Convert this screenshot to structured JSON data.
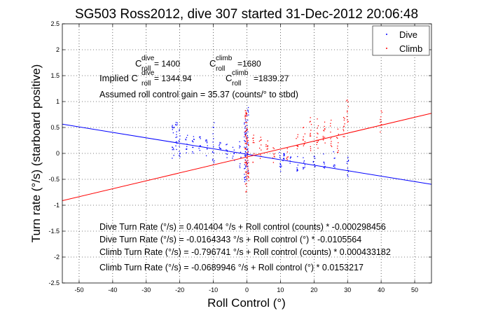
{
  "chart_data": {
    "type": "scatter",
    "title": "SG503 Ross2012, dive 307 started 31-Dec-2012 20:06:48",
    "xlabel": "Roll Control (°)",
    "ylabel": "Turn rate (°/s) (starboard positive)",
    "xlim": [
      -55,
      55
    ],
    "ylim": [
      -2.5,
      2.5
    ],
    "xticks": [
      -50,
      -40,
      -30,
      -20,
      -10,
      0,
      10,
      20,
      30,
      40,
      50
    ],
    "yticks": [
      -2.5,
      -2,
      -1.5,
      -1,
      -0.5,
      0,
      0.5,
      1,
      1.5,
      2,
      2.5
    ],
    "grid": true,
    "legend": {
      "position": "top-right",
      "entries": [
        {
          "name": "Dive",
          "color": "#0000ff"
        },
        {
          "name": "Climb",
          "color": "#ff0000"
        }
      ]
    },
    "annotations": {
      "croll_line": {
        "c1": "C",
        "sup1": "dive",
        "sub1": "roll",
        "v1": " = 1400",
        "c2": "C",
        "sup2": "climb",
        "sub2": "roll",
        "v2": "=1680"
      },
      "implied_line": {
        "prefix": "Implied C",
        "sup1": "dive",
        "sub1": "roll",
        "v1": " = 1344.94",
        "c2": "C",
        "sup2": "climb",
        "sub2": "roll",
        "v2": "=1839.27"
      },
      "gain": "Assumed roll control gain = 35.37 (counts/° to stbd)",
      "fits": [
        "Dive Turn Rate (°/s) = 0.401404 °/s + Roll control (counts) * -0.000298456",
        "Dive Turn Rate (°/s) = -0.0164343 °/s + Roll control (°) * -0.0105564",
        "Climb Turn Rate (°/s) = -0.796741 °/s + Roll control (counts) * 0.000433182",
        "Climb Turn Rate (°/s) = -0.0689946 °/s + Roll control (°) * 0.0153217"
      ]
    },
    "series": [
      {
        "name": "Dive",
        "color": "#0000ff",
        "fit": {
          "intercept": -0.0164343,
          "slope": -0.0105564
        },
        "clusters": [
          {
            "x": -22,
            "y_min": -0.1,
            "y_max": 0.55,
            "n": 14
          },
          {
            "x": -21,
            "y_min": 0.0,
            "y_max": 0.6,
            "n": 14
          },
          {
            "x": -20,
            "y_min": -0.1,
            "y_max": 0.5,
            "n": 12
          },
          {
            "x": -18,
            "y_min": -0.05,
            "y_max": 0.4,
            "n": 10
          },
          {
            "x": -16,
            "y_min": 0.0,
            "y_max": 0.35,
            "n": 10
          },
          {
            "x": -14,
            "y_min": 0.05,
            "y_max": 0.35,
            "n": 9
          },
          {
            "x": -12,
            "y_min": -0.1,
            "y_max": 0.3,
            "n": 9
          },
          {
            "x": -10,
            "y_min": -0.2,
            "y_max": 0.6,
            "n": 14
          },
          {
            "x": -8,
            "y_min": -0.1,
            "y_max": 0.25,
            "n": 8
          },
          {
            "x": -6,
            "y_min": -0.1,
            "y_max": 0.2,
            "n": 8
          },
          {
            "x": -4,
            "y_min": -0.15,
            "y_max": 0.15,
            "n": 8
          },
          {
            "x": -2,
            "y_min": -0.3,
            "y_max": 0.3,
            "n": 10
          },
          {
            "x": -0.5,
            "y_min": -0.55,
            "y_max": 0.7,
            "n": 40
          },
          {
            "x": 0.2,
            "y_min": -0.4,
            "y_max": 0.9,
            "n": 30
          },
          {
            "x": 10,
            "y_min": -0.35,
            "y_max": 0.05,
            "n": 12
          },
          {
            "x": 11,
            "y_min": -0.3,
            "y_max": 0.0,
            "n": 10
          },
          {
            "x": 13,
            "y_min": -0.2,
            "y_max": -0.05,
            "n": 6
          },
          {
            "x": 15,
            "y_min": -0.35,
            "y_max": -0.05,
            "n": 8
          },
          {
            "x": 17,
            "y_min": -0.3,
            "y_max": 0.1,
            "n": 8
          },
          {
            "x": 20,
            "y_min": -0.35,
            "y_max": -0.05,
            "n": 8
          },
          {
            "x": 23,
            "y_min": -0.3,
            "y_max": 0.0,
            "n": 8
          },
          {
            "x": 26,
            "y_min": -0.35,
            "y_max": 0.05,
            "n": 8
          },
          {
            "x": 30,
            "y_min": -0.45,
            "y_max": -0.05,
            "n": 12
          }
        ]
      },
      {
        "name": "Climb",
        "color": "#ff0000",
        "fit": {
          "intercept": -0.0689946,
          "slope": 0.0153217
        },
        "clusters": [
          {
            "x": -0.3,
            "y_min": -0.75,
            "y_max": 0.85,
            "n": 50
          },
          {
            "x": 0.3,
            "y_min": -0.6,
            "y_max": 0.5,
            "n": 30
          },
          {
            "x": 2,
            "y_min": -0.2,
            "y_max": 0.4,
            "n": 10
          },
          {
            "x": 4,
            "y_min": -0.1,
            "y_max": 0.35,
            "n": 10
          },
          {
            "x": 6,
            "y_min": 0.0,
            "y_max": 0.35,
            "n": 8
          },
          {
            "x": 8,
            "y_min": -0.25,
            "y_max": 0.15,
            "n": 8
          },
          {
            "x": 12,
            "y_min": -0.15,
            "y_max": 0.1,
            "n": 6
          },
          {
            "x": 15,
            "y_min": 0.0,
            "y_max": 0.4,
            "n": 8
          },
          {
            "x": 17,
            "y_min": 0.05,
            "y_max": 0.55,
            "n": 10
          },
          {
            "x": 19,
            "y_min": 0.05,
            "y_max": 0.7,
            "n": 12
          },
          {
            "x": 21,
            "y_min": 0.1,
            "y_max": 0.75,
            "n": 12
          },
          {
            "x": 23,
            "y_min": 0.1,
            "y_max": 0.7,
            "n": 12
          },
          {
            "x": 25,
            "y_min": 0.05,
            "y_max": 0.65,
            "n": 10
          },
          {
            "x": 27,
            "y_min": 0.0,
            "y_max": 0.6,
            "n": 10
          },
          {
            "x": 29,
            "y_min": 0.2,
            "y_max": 0.75,
            "n": 10
          },
          {
            "x": 30,
            "y_min": 0.5,
            "y_max": 1.05,
            "n": 10
          },
          {
            "x": 40,
            "y_min": 0.35,
            "y_max": 0.85,
            "n": 10
          }
        ]
      }
    ]
  }
}
